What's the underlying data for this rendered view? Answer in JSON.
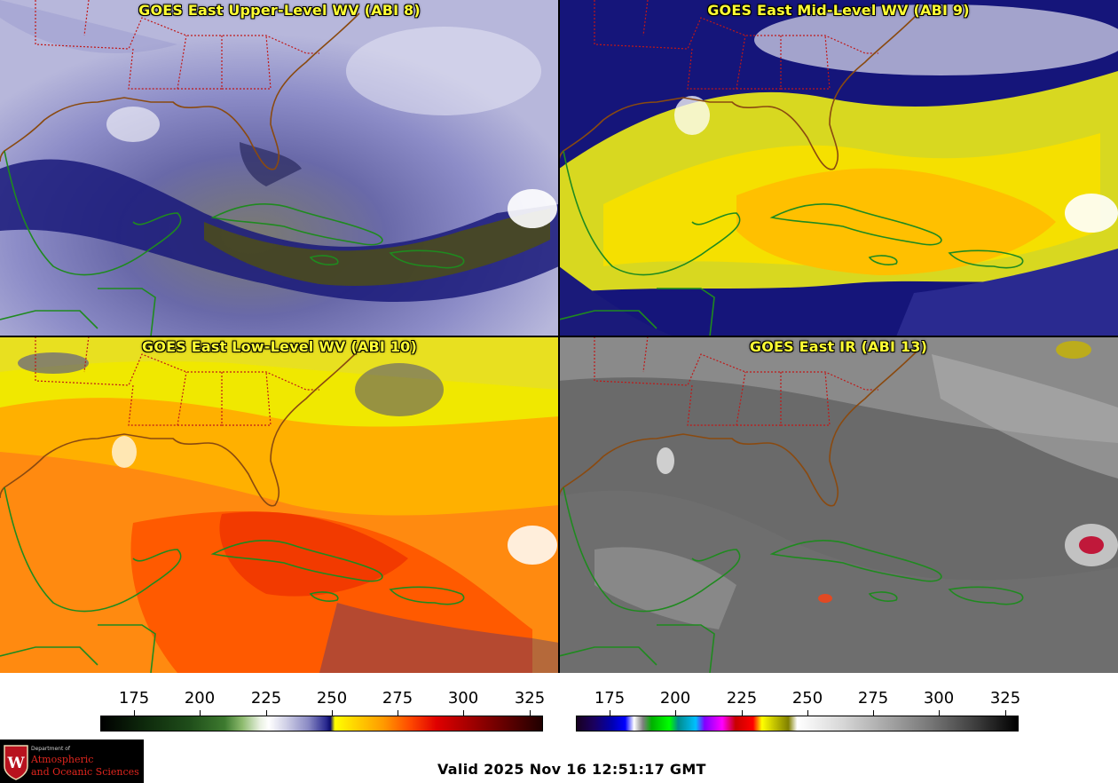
{
  "panels": [
    {
      "title": "GOES East Upper-Level WV (ABI 8)",
      "colormap": "wv"
    },
    {
      "title": "GOES East Mid-Level WV (ABI 9)",
      "colormap": "wv"
    },
    {
      "title": "GOES East Low-Level WV (ABI 10)",
      "colormap": "wv"
    },
    {
      "title": "GOES East IR (ABI 13)",
      "colormap": "ir"
    }
  ],
  "colorbars": {
    "wv": {
      "ticks": [
        "175",
        "200",
        "225",
        "250",
        "275",
        "300",
        "325"
      ]
    },
    "ir": {
      "ticks": [
        "175",
        "200",
        "225",
        "250",
        "275",
        "300",
        "325"
      ]
    }
  },
  "logo": {
    "dept": "Department of",
    "line1": "Atmospheric",
    "line2": "and Oceanic Sciences",
    "shield_letter": "W"
  },
  "valid_time": "Valid 2025 Nov 16 12:51:17 GMT",
  "colors": {
    "title_text": "#ffff33",
    "state_borders": "#c01818",
    "coastline_us": "#8a4a10",
    "coastline_caribbean": "#1f8a1f"
  }
}
